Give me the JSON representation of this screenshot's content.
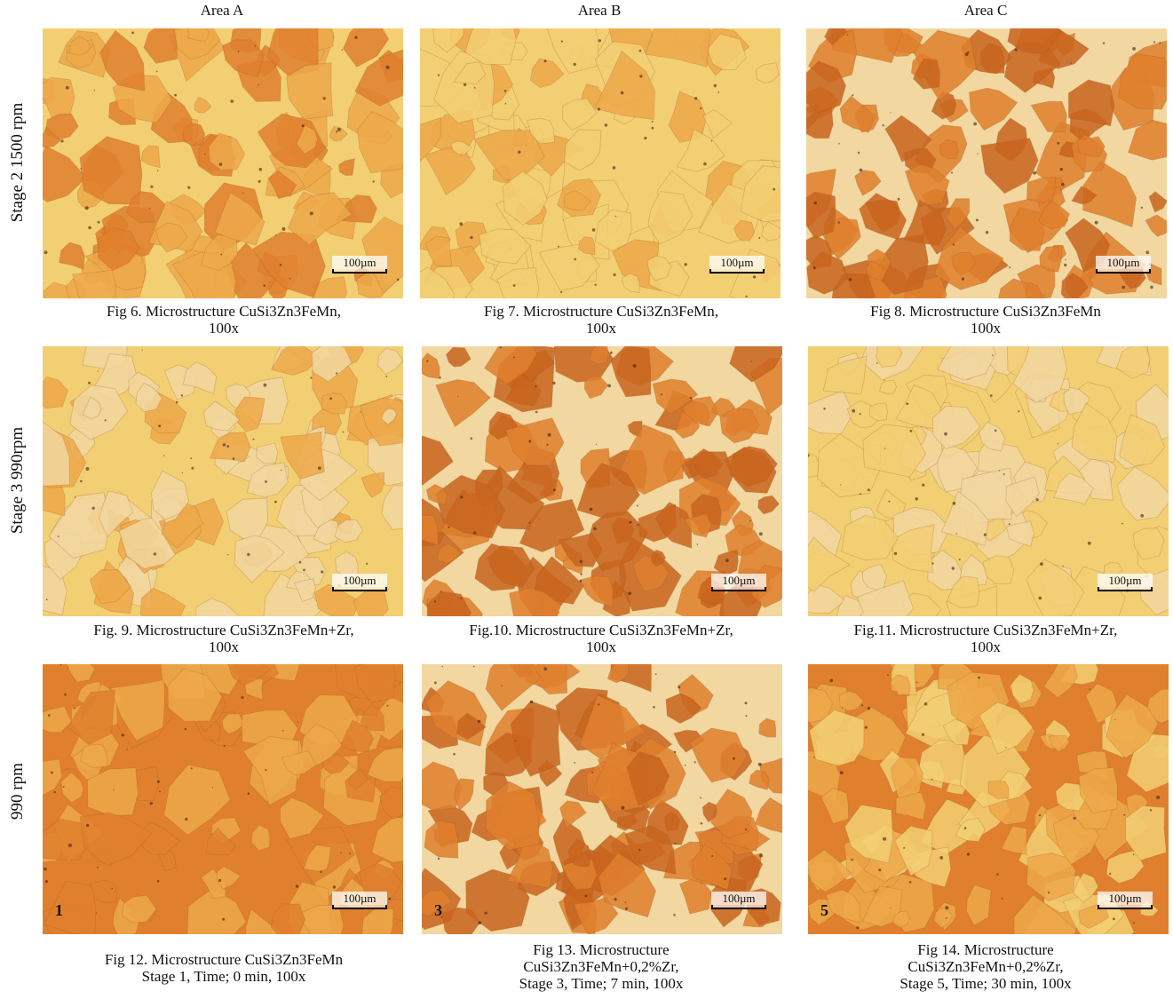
{
  "columns": [
    "Area A",
    "Area B",
    "Area C"
  ],
  "rows": [
    "Stage 2 1500 rpm",
    "Stage 3 990rpm",
    "990 rpm"
  ],
  "scale_label": "100µm",
  "panels": [
    {
      "caption_l1": "Fig 6. Microstructure CuSi3Zn3FeMn,",
      "caption_l2": "100x",
      "caption_l3": "",
      "marker": ""
    },
    {
      "caption_l1": "Fig 7. Microstructure CuSi3Zn3FeMn,",
      "caption_l2": "100x",
      "caption_l3": "",
      "marker": ""
    },
    {
      "caption_l1": "Fig 8. Microstructure CuSi3Zn3FeMn",
      "caption_l2": "100x",
      "caption_l3": "",
      "marker": ""
    },
    {
      "caption_l1": "Fig. 9. Microstructure CuSi3Zn3FeMn+Zr,",
      "caption_l2": "100x",
      "caption_l3": "",
      "marker": ""
    },
    {
      "caption_l1": "Fig.10. Microstructure CuSi3Zn3FeMn+Zr,",
      "caption_l2": "100x",
      "caption_l3": "",
      "marker": ""
    },
    {
      "caption_l1": "Fig.11. Microstructure CuSi3Zn3FeMn+Zr,",
      "caption_l2": "100x",
      "caption_l3": "",
      "marker": ""
    },
    {
      "caption_l1": "Fig 12. Microstructure CuSi3Zn3FeMn",
      "caption_l2": "Stage 1, Time; 0 min, 100x",
      "caption_l3": "",
      "marker": "1"
    },
    {
      "caption_l1": "Fig 13. Microstructure",
      "caption_l2": "CuSi3Zn3FeMn+0,2%Zr,",
      "caption_l3": "Stage 3, Time; 7 min, 100x",
      "marker": "3"
    },
    {
      "caption_l1": "Fig 14. Microstructure",
      "caption_l2": "CuSi3Zn3FeMn+0,2%Zr,",
      "caption_l3": "Stage 5, Time; 30 min, 100x",
      "marker": "5"
    }
  ],
  "palette": {
    "light": "#f3cf73",
    "mid": "#eea94a",
    "dark": "#e0802e",
    "deep": "#c9651f",
    "pale": "#f2d7a0"
  }
}
